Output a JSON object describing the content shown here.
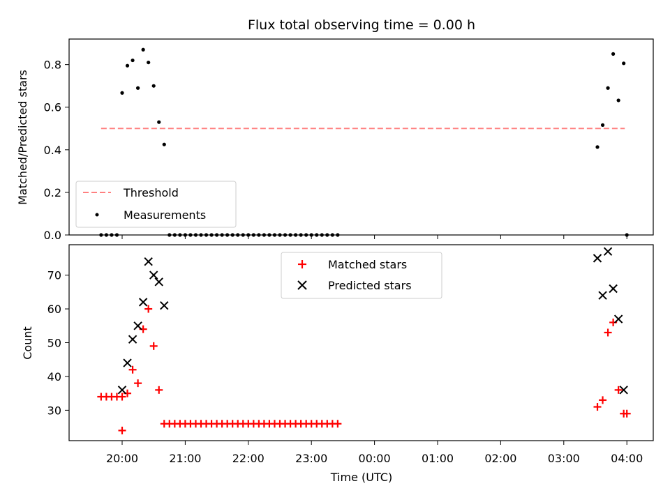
{
  "chart_data": [
    {
      "type": "scatter",
      "title": "Flux total observing time = 0.00 h",
      "xlabel": "",
      "ylabel": "Matched/Predicted stars",
      "x_tick_labels": [
        "20:00",
        "21:00",
        "22:00",
        "23:00",
        "00:00",
        "01:00",
        "02:00",
        "03:00",
        "04:00"
      ],
      "y_ticks": [
        "0.0",
        "0.2",
        "0.4",
        "0.6",
        "0.8"
      ],
      "ylim": [
        0,
        0.92
      ],
      "legend_position": "lower-left",
      "threshold": {
        "name": "Threshold",
        "value": 0.5,
        "x_start": "19:40",
        "x_end": "03:58",
        "color": "#ff8080",
        "style": "dashed"
      },
      "series": [
        {
          "name": "Measurements",
          "color": "#000000",
          "marker": "dot",
          "points": [
            [
              "19:40",
              0
            ],
            [
              "19:45",
              0
            ],
            [
              "19:50",
              0
            ],
            [
              "19:55",
              0
            ],
            [
              "20:00",
              0.667
            ],
            [
              "20:05",
              0.795
            ],
            [
              "20:10",
              0.82
            ],
            [
              "20:15",
              0.69
            ],
            [
              "20:20",
              0.87
            ],
            [
              "20:25",
              0.81
            ],
            [
              "20:30",
              0.7
            ],
            [
              "20:35",
              0.53
            ],
            [
              "20:40",
              0.425
            ],
            [
              "20:45",
              0
            ],
            [
              "20:50",
              0
            ],
            [
              "20:55",
              0
            ],
            [
              "21:00",
              0
            ],
            [
              "21:05",
              0
            ],
            [
              "21:10",
              0
            ],
            [
              "21:15",
              0
            ],
            [
              "21:20",
              0
            ],
            [
              "21:25",
              0
            ],
            [
              "21:30",
              0
            ],
            [
              "21:35",
              0
            ],
            [
              "21:40",
              0
            ],
            [
              "21:45",
              0
            ],
            [
              "21:50",
              0
            ],
            [
              "21:55",
              0
            ],
            [
              "22:00",
              0
            ],
            [
              "22:05",
              0
            ],
            [
              "22:10",
              0
            ],
            [
              "22:15",
              0
            ],
            [
              "22:20",
              0
            ],
            [
              "22:25",
              0
            ],
            [
              "22:30",
              0
            ],
            [
              "22:35",
              0
            ],
            [
              "22:40",
              0
            ],
            [
              "22:45",
              0
            ],
            [
              "22:50",
              0
            ],
            [
              "22:55",
              0
            ],
            [
              "23:00",
              0
            ],
            [
              "23:05",
              0
            ],
            [
              "23:10",
              0
            ],
            [
              "23:15",
              0
            ],
            [
              "23:20",
              0
            ],
            [
              "23:25",
              0
            ],
            [
              "03:32",
              0.413
            ],
            [
              "03:37",
              0.516
            ],
            [
              "03:42",
              0.69
            ],
            [
              "03:47",
              0.85
            ],
            [
              "03:52",
              0.632
            ],
            [
              "03:57",
              0.806
            ],
            [
              "04:00",
              0
            ]
          ]
        }
      ]
    },
    {
      "type": "scatter",
      "title": "",
      "xlabel": "Time (UTC)",
      "ylabel": "Count",
      "x_tick_labels": [
        "20:00",
        "21:00",
        "22:00",
        "23:00",
        "00:00",
        "01:00",
        "02:00",
        "03:00",
        "04:00"
      ],
      "y_ticks": [
        "30",
        "40",
        "50",
        "60",
        "70"
      ],
      "ylim": [
        21,
        79
      ],
      "legend_position": "upper-center",
      "series": [
        {
          "name": "Matched stars",
          "color": "#ff0000",
          "marker": "plus",
          "points": [
            [
              "19:40",
              34
            ],
            [
              "19:45",
              34
            ],
            [
              "19:50",
              34
            ],
            [
              "19:55",
              34
            ],
            [
              "20:00",
              34
            ],
            [
              "20:00",
              24
            ],
            [
              "20:05",
              35
            ],
            [
              "20:10",
              42
            ],
            [
              "20:15",
              38
            ],
            [
              "20:20",
              54
            ],
            [
              "20:25",
              60
            ],
            [
              "20:30",
              49
            ],
            [
              "20:35",
              36
            ],
            [
              "20:40",
              26
            ],
            [
              "20:45",
              26
            ],
            [
              "20:50",
              26
            ],
            [
              "20:55",
              26
            ],
            [
              "21:00",
              26
            ],
            [
              "21:05",
              26
            ],
            [
              "21:10",
              26
            ],
            [
              "21:15",
              26
            ],
            [
              "21:20",
              26
            ],
            [
              "21:25",
              26
            ],
            [
              "21:30",
              26
            ],
            [
              "21:35",
              26
            ],
            [
              "21:40",
              26
            ],
            [
              "21:45",
              26
            ],
            [
              "21:50",
              26
            ],
            [
              "21:55",
              26
            ],
            [
              "22:00",
              26
            ],
            [
              "22:05",
              26
            ],
            [
              "22:10",
              26
            ],
            [
              "22:15",
              26
            ],
            [
              "22:20",
              26
            ],
            [
              "22:25",
              26
            ],
            [
              "22:30",
              26
            ],
            [
              "22:35",
              26
            ],
            [
              "22:40",
              26
            ],
            [
              "22:45",
              26
            ],
            [
              "22:50",
              26
            ],
            [
              "22:55",
              26
            ],
            [
              "23:00",
              26
            ],
            [
              "23:05",
              26
            ],
            [
              "23:10",
              26
            ],
            [
              "23:15",
              26
            ],
            [
              "23:20",
              26
            ],
            [
              "23:25",
              26
            ],
            [
              "03:32",
              31
            ],
            [
              "03:37",
              33
            ],
            [
              "03:42",
              53
            ],
            [
              "03:47",
              56
            ],
            [
              "03:52",
              36
            ],
            [
              "03:57",
              29
            ],
            [
              "04:00",
              29
            ]
          ]
        },
        {
          "name": "Predicted stars",
          "color": "#000000",
          "marker": "x",
          "points": [
            [
              "20:00",
              36
            ],
            [
              "20:05",
              44
            ],
            [
              "20:10",
              51
            ],
            [
              "20:15",
              55
            ],
            [
              "20:20",
              62
            ],
            [
              "20:25",
              74
            ],
            [
              "20:30",
              70
            ],
            [
              "20:35",
              68
            ],
            [
              "20:40",
              61
            ],
            [
              "03:32",
              75
            ],
            [
              "03:37",
              64
            ],
            [
              "03:42",
              77
            ],
            [
              "03:47",
              66
            ],
            [
              "03:52",
              57
            ],
            [
              "03:57",
              36
            ]
          ]
        }
      ]
    }
  ]
}
